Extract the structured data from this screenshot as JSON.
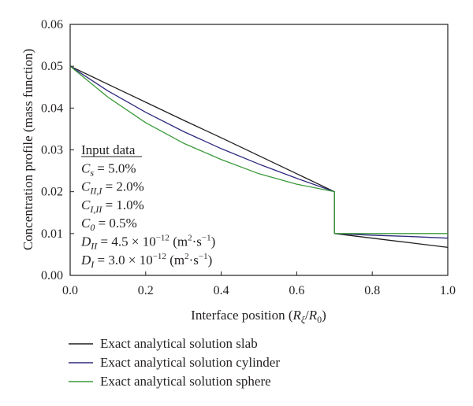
{
  "chart_data": {
    "type": "line",
    "xlabel": {
      "pre": "Interface position (",
      "r1": "R",
      "s1": "ξ",
      "slash": "/",
      "r2": "R",
      "s2": "0",
      "post": ")"
    },
    "ylabel": "Concentration profile (mass function)",
    "xlim": [
      0,
      1.0
    ],
    "ylim": [
      0,
      0.06
    ],
    "x_ticks": [
      0,
      0.2,
      0.4,
      0.6,
      0.8,
      1.0
    ],
    "x_tick_labels": [
      "0.0",
      "0.2",
      "0.4",
      "0.6",
      "0.8",
      "1.0"
    ],
    "y_ticks": [
      0,
      0.01,
      0.02,
      0.03,
      0.04,
      0.05,
      0.06
    ],
    "y_tick_labels": [
      "0.00",
      "0.01",
      "0.02",
      "0.03",
      "0.04",
      "0.05",
      "0.06"
    ],
    "grid": false,
    "legend_position": "below",
    "series": [
      {
        "name": "Exact analytical solution slab",
        "color": "#231f20",
        "x": [
          0,
          0.1,
          0.2,
          0.3,
          0.4,
          0.5,
          0.6,
          0.7,
          0.7,
          0.8,
          0.9,
          1.0
        ],
        "y": [
          0.05,
          0.0457,
          0.0414,
          0.0371,
          0.0329,
          0.0286,
          0.0243,
          0.02,
          0.01,
          0.0089,
          0.0078,
          0.0067
        ]
      },
      {
        "name": "Exact analytical solution cylinder",
        "color": "#2e2a7e",
        "x": [
          0,
          0.1,
          0.2,
          0.3,
          0.4,
          0.5,
          0.6,
          0.7,
          0.7,
          0.8,
          0.9,
          1.0
        ],
        "y": [
          0.05,
          0.0441,
          0.039,
          0.0344,
          0.0303,
          0.0266,
          0.0232,
          0.02,
          0.01,
          0.0096,
          0.0093,
          0.0089
        ]
      },
      {
        "name": "Exact analytical solution sphere",
        "color": "#3a9a3a",
        "x": [
          0,
          0.1,
          0.2,
          0.3,
          0.4,
          0.5,
          0.6,
          0.7,
          0.7,
          0.8,
          0.9,
          1.0
        ],
        "y": [
          0.05,
          0.0426,
          0.0365,
          0.0316,
          0.0277,
          0.0243,
          0.0218,
          0.02,
          0.01,
          0.01,
          0.01,
          0.01
        ]
      }
    ],
    "annotation": {
      "title": "Input data",
      "lines": [
        {
          "sym": "C",
          "sub": "s",
          "val": " = 5.0%"
        },
        {
          "sym": "C",
          "sub": "II,I",
          "val": " = 2.0%"
        },
        {
          "sym": "C",
          "sub": "I,II",
          "val": " = 1.0%"
        },
        {
          "sym": "C",
          "sub": "0",
          "val": " = 0.5%"
        },
        {
          "sym": "D",
          "sub": "II",
          "val": " = 4.5 × 10",
          "exp": "−12",
          "unit_pre": " (m",
          "unit_exp1": "2",
          "unit_mid": "·s",
          "unit_exp2": "−1",
          "unit_post": ")"
        },
        {
          "sym": "D",
          "sub": "I",
          "val": " = 3.0 × 10",
          "exp": "−12",
          "unit_pre": " (m",
          "unit_exp1": "2",
          "unit_mid": "·s",
          "unit_exp2": "−1",
          "unit_post": ")"
        }
      ]
    }
  }
}
